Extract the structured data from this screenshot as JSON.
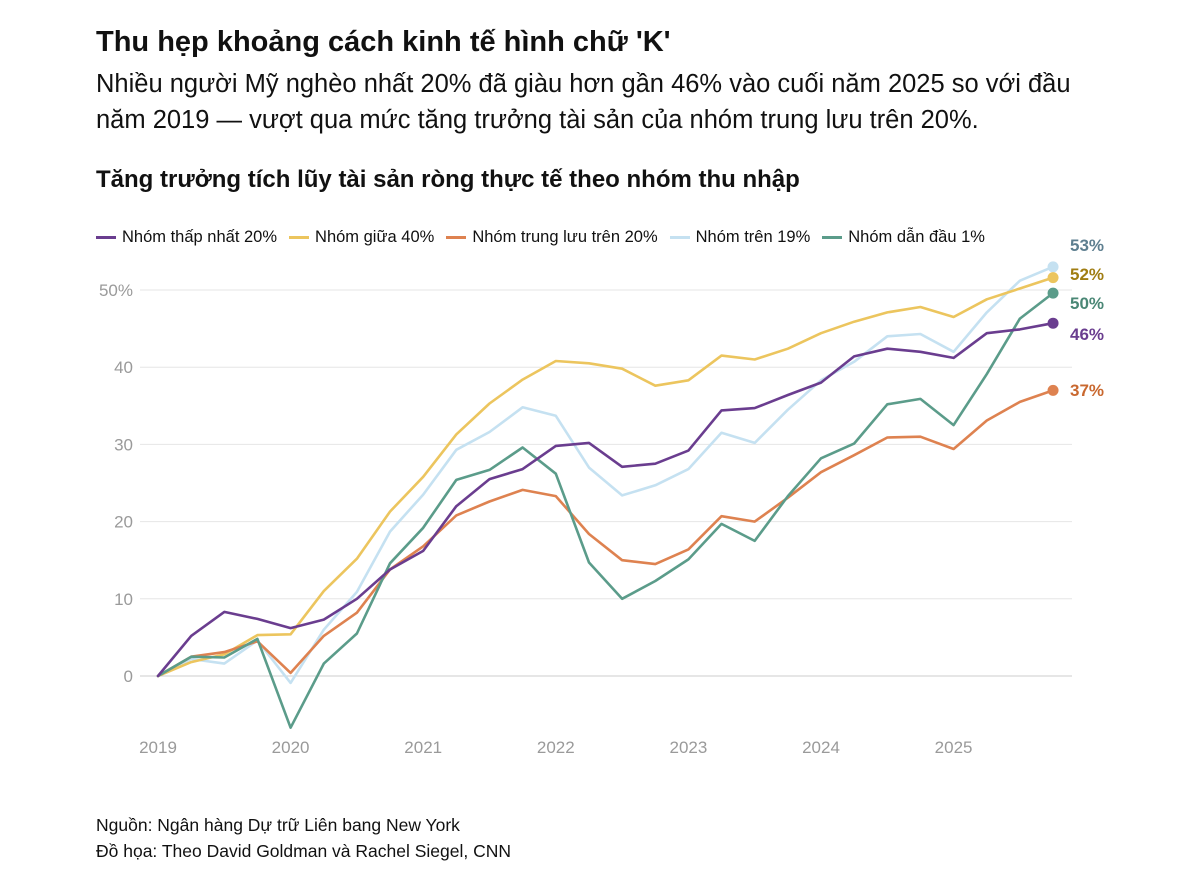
{
  "header": {
    "title": "Thu hẹp khoảng cách kinh tế hình chữ 'K'",
    "subtitle": "Nhiều người Mỹ nghèo nhất 20% đã giàu hơn gần 46% vào cuối năm 2025 so với đầu năm 2019 — vượt qua mức tăng trưởng tài sản của nhóm trung lưu trên 20%."
  },
  "footer": {
    "source": "Nguồn: Ngân hàng Dự trữ Liên bang New York",
    "credit": "Đồ họa: Theo David Goldman và Rachel Siegel, CNN"
  },
  "chart_data": {
    "type": "line",
    "title": "Tăng trưởng tích lũy tài sản ròng thực tế theo nhóm thu nhập",
    "xlabel": "",
    "ylabel": "",
    "x": [
      "2019-Q1",
      "2019-Q2",
      "2019-Q3",
      "2019-Q4",
      "2020-Q1",
      "2020-Q2",
      "2020-Q3",
      "2020-Q4",
      "2021-Q1",
      "2021-Q2",
      "2021-Q3",
      "2021-Q4",
      "2022-Q1",
      "2022-Q2",
      "2022-Q3",
      "2022-Q4",
      "2023-Q1",
      "2023-Q2",
      "2023-Q3",
      "2023-Q4",
      "2024-Q1",
      "2024-Q2",
      "2024-Q3",
      "2024-Q4",
      "2025-Q1",
      "2025-Q2",
      "2025-Q3",
      "2025-Q4"
    ],
    "x_ticks": [
      "2019",
      "2020",
      "2021",
      "2022",
      "2023",
      "2024",
      "2025"
    ],
    "y_ticks": [
      0,
      10,
      20,
      30,
      40,
      50
    ],
    "y_tick_labels": [
      "0",
      "10",
      "20",
      "30",
      "40",
      "50%"
    ],
    "ylim": [
      -7,
      55
    ],
    "grid": true,
    "legend_position": "top-left",
    "series": [
      {
        "name": "Nhóm thấp nhất 20%",
        "color": "#6a3d8f",
        "end_label": "46%",
        "end_label_color": "#6a3d8f",
        "values": [
          0,
          5.2,
          8.3,
          7.4,
          6.2,
          7.3,
          10,
          13.8,
          16.2,
          22,
          25.5,
          26.8,
          29.8,
          30.2,
          27.1,
          27.5,
          29.2,
          34.4,
          34.7,
          36.4,
          38,
          41.4,
          42.4,
          42,
          41.2,
          44.4,
          44.9,
          45.7
        ]
      },
      {
        "name": "Nhóm giữa 40%",
        "color": "#ecc55e",
        "end_label": "52%",
        "end_label_color": "#a07d12",
        "values": [
          0,
          1.8,
          2.8,
          5.3,
          5.4,
          11,
          15.2,
          21.3,
          25.8,
          31.3,
          35.3,
          38.4,
          40.8,
          40.5,
          39.8,
          37.6,
          38.3,
          41.5,
          41,
          42.4,
          44.4,
          45.9,
          47.1,
          47.8,
          46.5,
          48.8,
          50.2,
          51.6
        ]
      },
      {
        "name": "Nhóm trung lưu trên 20%",
        "color": "#de8250",
        "end_label": "37%",
        "end_label_color": "#c9682f",
        "values": [
          0,
          2.5,
          3.1,
          4.5,
          0.4,
          5.2,
          8.2,
          13.8,
          16.8,
          20.8,
          22.6,
          24.1,
          23.3,
          18.4,
          15,
          14.5,
          16.4,
          20.7,
          20,
          23.1,
          26.4,
          28.6,
          30.9,
          31,
          29.4,
          33.1,
          35.5,
          37
        ]
      },
      {
        "name": "Nhóm trên 19%",
        "color": "#c5e1f1",
        "end_label": "53%",
        "end_label_color": "#5e7f90",
        "values": [
          0,
          2.2,
          1.6,
          4.6,
          -0.9,
          6,
          10.9,
          18.7,
          23.5,
          29.3,
          31.6,
          34.8,
          33.7,
          27,
          23.4,
          24.7,
          26.8,
          31.5,
          30.2,
          34.5,
          38.3,
          40.7,
          44,
          44.3,
          42,
          47.1,
          51.2,
          53
        ]
      },
      {
        "name": "Nhóm dẫn đầu 1%",
        "color": "#5b9c8a",
        "end_label": "50%",
        "end_label_color": "#4a8775",
        "values": [
          0,
          2.5,
          2.4,
          4.8,
          -6.7,
          1.6,
          5.5,
          14.6,
          19.2,
          25.4,
          26.7,
          29.6,
          26.2,
          14.7,
          10,
          12.3,
          15.1,
          19.7,
          17.5,
          23.3,
          28.2,
          30.1,
          35.2,
          35.9,
          32.5,
          39.1,
          46.3,
          49.6
        ]
      }
    ]
  }
}
